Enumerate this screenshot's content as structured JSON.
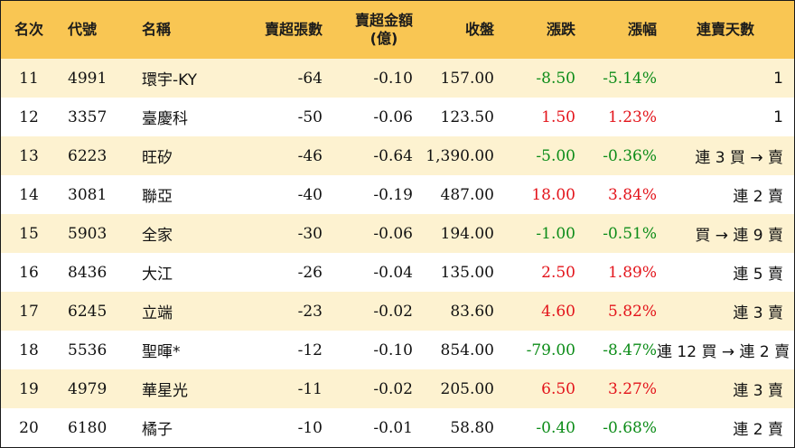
{
  "headers": {
    "rank": "名次",
    "code": "代號",
    "name": "名稱",
    "net_sell_lots": "賣超張數",
    "net_sell_amount_line1": "賣超金額",
    "net_sell_amount_line2": "(億)",
    "close": "收盤",
    "change": "漲跌",
    "change_pct": "漲幅",
    "streak": "連賣天數"
  },
  "colors": {
    "header_bg": "#f9c653",
    "row_alt_bg": "#fdf2d0",
    "up": "#e3141b",
    "down": "#0c8c18"
  },
  "rows": [
    {
      "rank": "11",
      "code": "4991",
      "name": "環宇-KY",
      "lots": "-64",
      "amount": "-0.10",
      "close": "157.00",
      "change": "-8.50",
      "pct": "-5.14%",
      "dir": "down",
      "streak": "1"
    },
    {
      "rank": "12",
      "code": "3357",
      "name": "臺慶科",
      "lots": "-50",
      "amount": "-0.06",
      "close": "123.50",
      "change": "1.50",
      "pct": "1.23%",
      "dir": "up",
      "streak": "1"
    },
    {
      "rank": "13",
      "code": "6223",
      "name": "旺矽",
      "lots": "-46",
      "amount": "-0.64",
      "close": "1,390.00",
      "change": "-5.00",
      "pct": "-0.36%",
      "dir": "down",
      "streak": "連 3 買 → 賣"
    },
    {
      "rank": "14",
      "code": "3081",
      "name": "聯亞",
      "lots": "-40",
      "amount": "-0.19",
      "close": "487.00",
      "change": "18.00",
      "pct": "3.84%",
      "dir": "up",
      "streak": "連 2 賣"
    },
    {
      "rank": "15",
      "code": "5903",
      "name": "全家",
      "lots": "-30",
      "amount": "-0.06",
      "close": "194.00",
      "change": "-1.00",
      "pct": "-0.51%",
      "dir": "down",
      "streak": "買 → 連 9 賣"
    },
    {
      "rank": "16",
      "code": "8436",
      "name": "大江",
      "lots": "-26",
      "amount": "-0.04",
      "close": "135.00",
      "change": "2.50",
      "pct": "1.89%",
      "dir": "up",
      "streak": "連 5 賣"
    },
    {
      "rank": "17",
      "code": "6245",
      "name": "立端",
      "lots": "-23",
      "amount": "-0.02",
      "close": "83.60",
      "change": "4.60",
      "pct": "5.82%",
      "dir": "up",
      "streak": "連 3 賣"
    },
    {
      "rank": "18",
      "code": "5536",
      "name": "聖暉*",
      "lots": "-12",
      "amount": "-0.10",
      "close": "854.00",
      "change": "-79.00",
      "pct": "-8.47%",
      "dir": "down",
      "streak": "連 12 買 → 連 2 賣"
    },
    {
      "rank": "19",
      "code": "4979",
      "name": "華星光",
      "lots": "-11",
      "amount": "-0.02",
      "close": "205.00",
      "change": "6.50",
      "pct": "3.27%",
      "dir": "up",
      "streak": "連 3 賣"
    },
    {
      "rank": "20",
      "code": "6180",
      "name": "橘子",
      "lots": "-10",
      "amount": "-0.01",
      "close": "58.80",
      "change": "-0.40",
      "pct": "-0.68%",
      "dir": "down",
      "streak": "連 2 賣"
    }
  ]
}
